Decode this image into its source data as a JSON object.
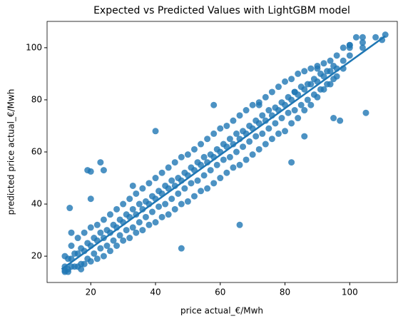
{
  "chart_data": {
    "type": "scatter",
    "title": "Expected vs Predicted Values with LightGBM model",
    "xlabel": "price actual_€/Mwh",
    "ylabel": "predicted price actual_€/Mwh",
    "color": "#1f77b4",
    "xlim": [
      6.5,
      114.7
    ],
    "ylim": [
      9.9,
      110.1
    ],
    "xticks": [
      20,
      40,
      60,
      80,
      100
    ],
    "yticks": [
      20,
      40,
      60,
      80,
      100
    ],
    "grid": false,
    "x": [
      12,
      12,
      12,
      14,
      14,
      14,
      16,
      16,
      16,
      18,
      18,
      18,
      20,
      20,
      20,
      22,
      22,
      22,
      24,
      24,
      24,
      26,
      26,
      26,
      28,
      28,
      28,
      30,
      30,
      30,
      32,
      32,
      32,
      34,
      34,
      34,
      36,
      36,
      36,
      38,
      38,
      38,
      40,
      40,
      40,
      42,
      42,
      42,
      44,
      44,
      44,
      46,
      46,
      46,
      48,
      48,
      48,
      50,
      50,
      50,
      52,
      52,
      52,
      54,
      54,
      54,
      56,
      56,
      56,
      58,
      58,
      58,
      60,
      60,
      60,
      62,
      62,
      62,
      64,
      64,
      64,
      66,
      66,
      66,
      68,
      68,
      68,
      70,
      70,
      70,
      72,
      72,
      72,
      74,
      74,
      74,
      76,
      76,
      76,
      78,
      78,
      78,
      80,
      80,
      80,
      82,
      82,
      82,
      84,
      84,
      84,
      86,
      86,
      86,
      88,
      88,
      88,
      90,
      90,
      90,
      92,
      92,
      92,
      94,
      94,
      94,
      96,
      96,
      96,
      98,
      98,
      98,
      100,
      100,
      100,
      104,
      104,
      104,
      13,
      13,
      15,
      15,
      17,
      17,
      19,
      19,
      21,
      21,
      23,
      23,
      25,
      25,
      27,
      27,
      29,
      29,
      31,
      31,
      33,
      33,
      35,
      35,
      37,
      37,
      39,
      39,
      41,
      41,
      43,
      43,
      45,
      45,
      47,
      47,
      49,
      49,
      51,
      51,
      53,
      53,
      55,
      55,
      57,
      57,
      59,
      59,
      61,
      61,
      63,
      63,
      65,
      65,
      67,
      67,
      69,
      69,
      71,
      71,
      73,
      73,
      75,
      75,
      77,
      77,
      79,
      79,
      81,
      81,
      83,
      83,
      85,
      85,
      87,
      87,
      89,
      89,
      91,
      91,
      93,
      93,
      95,
      95,
      13.5,
      19,
      20,
      23,
      24,
      20,
      33,
      40,
      48,
      58,
      66,
      72,
      82,
      97,
      95,
      105,
      86,
      100,
      102,
      108,
      110,
      111,
      83,
      90,
      14,
      13,
      12,
      17
    ],
    "values": [
      14,
      16,
      20,
      16,
      19,
      24,
      16,
      21,
      27,
      17,
      22,
      29,
      18,
      24,
      31,
      19,
      26,
      32,
      20,
      27,
      34,
      22,
      29,
      36,
      24,
      31,
      38,
      26,
      33,
      40,
      27,
      35,
      42,
      29,
      36,
      44,
      30,
      38,
      46,
      32,
      40,
      48,
      33,
      42,
      50,
      35,
      44,
      52,
      36,
      46,
      54,
      38,
      47,
      56,
      40,
      49,
      58,
      41,
      51,
      59,
      43,
      53,
      61,
      45,
      55,
      63,
      46,
      56,
      65,
      48,
      58,
      67,
      50,
      60,
      69,
      52,
      62,
      70,
      54,
      63,
      72,
      55,
      65,
      74,
      57,
      67,
      76,
      59,
      69,
      78,
      61,
      71,
      79,
      63,
      72,
      81,
      65,
      74,
      83,
      67,
      76,
      85,
      68,
      78,
      87,
      71,
      80,
      88,
      73,
      82,
      90,
      76,
      84,
      91,
      78,
      86,
      92,
      81,
      87,
      93,
      84,
      89,
      94,
      86,
      91,
      95,
      89,
      92,
      97,
      92,
      95,
      100,
      97,
      100,
      101,
      100,
      102,
      104,
      14,
      19,
      16,
      21,
      17,
      23,
      19,
      25,
      21,
      27,
      23,
      29,
      24,
      30,
      26,
      32,
      28,
      34,
      30,
      36,
      31,
      38,
      33,
      40,
      35,
      41,
      37,
      43,
      39,
      45,
      40,
      47,
      42,
      49,
      44,
      50,
      46,
      52,
      48,
      54,
      49,
      56,
      51,
      58,
      53,
      59,
      55,
      61,
      57,
      63,
      58,
      65,
      60,
      67,
      62,
      68,
      64,
      70,
      66,
      72,
      67,
      74,
      69,
      76,
      71,
      77,
      73,
      79,
      75,
      81,
      76,
      83,
      78,
      85,
      80,
      86,
      82,
      88,
      84,
      90,
      86,
      91,
      88,
      93,
      38.5,
      53,
      52.5,
      56,
      53,
      42,
      47,
      68,
      23,
      78,
      32,
      78,
      56,
      72,
      73,
      75,
      66,
      101,
      104,
      104,
      103,
      105,
      83,
      92,
      29,
      15,
      14.5,
      15
    ],
    "trend": {
      "x": [
        11,
        111
      ],
      "values": [
        15,
        104.5
      ]
    }
  }
}
